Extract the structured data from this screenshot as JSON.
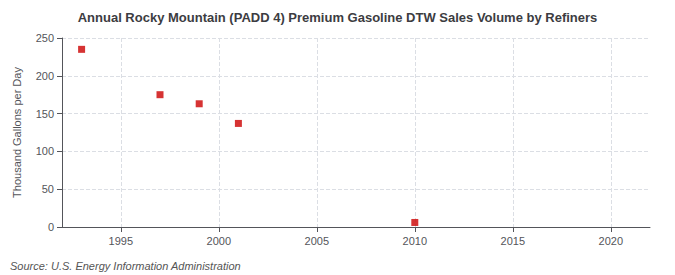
{
  "chart_data": {
    "type": "scatter",
    "title": "Annual Rocky Mountain (PADD 4) Premium Gasoline DTW Sales Volume by Refiners",
    "ylabel": "Thousand Gallons per Day",
    "annotations": [
      "Source: U.S. Energy Information Administration"
    ],
    "x": [
      1993,
      1997,
      1999,
      2001,
      2010
    ],
    "values": [
      235,
      175,
      163,
      137,
      6
    ],
    "color": "#cc0000",
    "marker": "square",
    "xlim": [
      1992,
      2022
    ],
    "xticks": [
      1995,
      2000,
      2005,
      2010,
      2015,
      2020
    ],
    "ylim": [
      0,
      250
    ],
    "yticks": [
      0,
      50,
      100,
      150,
      200,
      250
    ],
    "grid": true
  }
}
